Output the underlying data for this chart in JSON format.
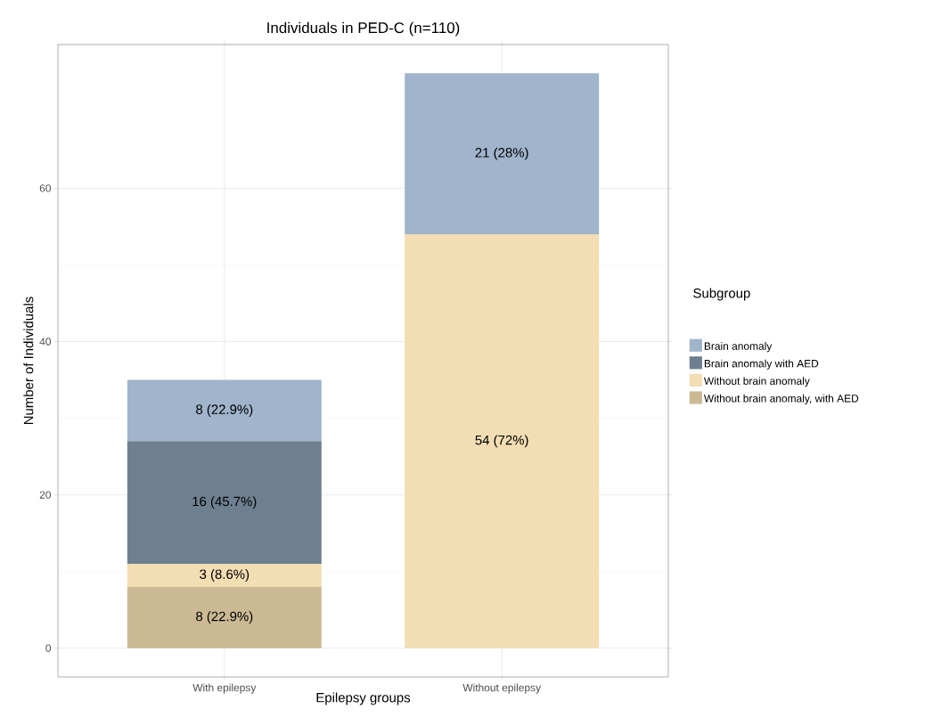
{
  "chart_data": {
    "type": "bar",
    "title": "Individuals in PED-C (n=110)",
    "xlabel": "Epilepsy groups",
    "ylabel": "Number of Individuals",
    "legend_title": "Subgroup",
    "categories": [
      "With epilepsy",
      "Without epilepsy"
    ],
    "stacked": true,
    "ylim": [
      -3.75,
      78.75
    ],
    "yticks": [
      0,
      20,
      40,
      60
    ],
    "grid": true,
    "legend": "right",
    "series": [
      {
        "name": "Without brain anomaly, with AED",
        "color": "#cbb994",
        "values": [
          8,
          0
        ],
        "value_labels": [
          "8 (22.9%)",
          null
        ]
      },
      {
        "name": "Without brain anomaly",
        "color": "#f3ddb3",
        "values": [
          3,
          54
        ],
        "value_labels": [
          "3 (8.6%)",
          "54 (72%)"
        ]
      },
      {
        "name": "Brain anomaly with AED",
        "color": "#6e8090",
        "values": [
          16,
          0
        ],
        "value_labels": [
          "16 (45.7%)",
          null
        ]
      },
      {
        "name": "Brain anomaly",
        "color": "#a0b4cb",
        "values": [
          8,
          21
        ],
        "value_labels": [
          "8 (22.9%)",
          "21 (28%)"
        ]
      }
    ]
  }
}
